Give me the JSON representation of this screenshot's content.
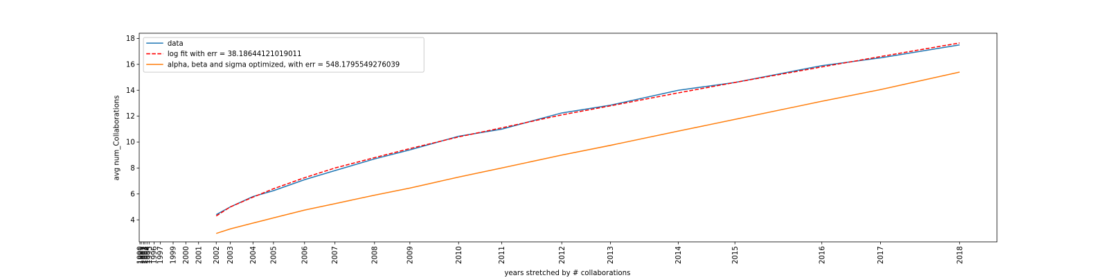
{
  "chart_data": {
    "type": "line",
    "xlabel": "years stretched by # collaborations",
    "ylabel": "avg num_Collaborations",
    "x": [
      109,
      129,
      161,
      190,
      234,
      277,
      333,
      383,
      452,
      513,
      598,
      667,
      763,
      843,
      966,
      1049,
      1161
    ],
    "series": [
      {
        "name": "data",
        "color": "#1f77b4",
        "dash": false,
        "values": [
          4.4,
          5.0,
          5.8,
          6.25,
          7.1,
          7.8,
          8.7,
          9.4,
          10.45,
          11.0,
          12.25,
          12.85,
          14.0,
          14.6,
          15.9,
          16.5,
          17.5
        ]
      },
      {
        "name": "log fit with err = 38.18644121019011",
        "color": "#ff0000",
        "dash": true,
        "values": [
          4.3,
          5.0,
          5.75,
          6.4,
          7.25,
          8.0,
          8.8,
          9.5,
          10.4,
          11.1,
          12.1,
          12.8,
          13.8,
          14.6,
          15.8,
          16.6,
          17.65
        ]
      },
      {
        "name": "alpha, beta and sigma optimized, with err = 548.1795549276039",
        "color": "#ff7f0e",
        "dash": false,
        "values": [
          2.95,
          3.3,
          3.75,
          4.15,
          4.75,
          5.25,
          5.9,
          6.45,
          7.3,
          8.0,
          9.0,
          9.75,
          10.85,
          11.75,
          13.15,
          14.05,
          15.4
        ]
      }
    ],
    "xlim": [
      0,
      1214
    ],
    "xticks": [
      {
        "value": 1,
        "label": "1990"
      },
      {
        "value": 3,
        "label": "1991"
      },
      {
        "value": 6,
        "label": "1992"
      },
      {
        "value": 8,
        "label": "1993"
      },
      {
        "value": 11,
        "label": "1994"
      },
      {
        "value": 14,
        "label": "1995"
      },
      {
        "value": 21,
        "label": "1996"
      },
      {
        "value": 30,
        "label": "1997"
      },
      {
        "value": 48,
        "label": "1999"
      },
      {
        "value": 66,
        "label": "2000"
      },
      {
        "value": 84,
        "label": "2001"
      },
      {
        "value": 109,
        "label": "2002"
      },
      {
        "value": 129,
        "label": "2003"
      },
      {
        "value": 161,
        "label": "2004"
      },
      {
        "value": 190,
        "label": "2005"
      },
      {
        "value": 234,
        "label": "2006"
      },
      {
        "value": 277,
        "label": "2007"
      },
      {
        "value": 333,
        "label": "2008"
      },
      {
        "value": 383,
        "label": "2009"
      },
      {
        "value": 452,
        "label": "2010"
      },
      {
        "value": 513,
        "label": "2011"
      },
      {
        "value": 598,
        "label": "2012"
      },
      {
        "value": 667,
        "label": "2013"
      },
      {
        "value": 763,
        "label": "2014"
      },
      {
        "value": 843,
        "label": "2015"
      },
      {
        "value": 966,
        "label": "2016"
      },
      {
        "value": 1049,
        "label": "2017"
      },
      {
        "value": 1161,
        "label": "2018"
      }
    ],
    "ylim": [
      2.3,
      18.4
    ],
    "yticks": [
      4,
      6,
      8,
      10,
      12,
      14,
      16,
      18
    ],
    "legend": "upper-left"
  }
}
